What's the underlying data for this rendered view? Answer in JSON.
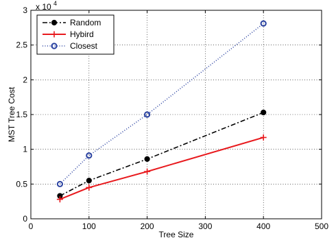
{
  "chart_data": {
    "type": "line",
    "title": "",
    "xlabel": "Tree Size",
    "ylabel": "MST Tree Cost",
    "xlim": [
      0,
      500
    ],
    "ylim": [
      0,
      30000
    ],
    "x_ticks": [
      0,
      100,
      200,
      300,
      400,
      500
    ],
    "y_ticks": [
      0,
      5000,
      10000,
      15000,
      20000,
      25000,
      30000
    ],
    "y_tick_labels": [
      "0",
      "0.5",
      "1",
      "1.5",
      "2",
      "2.5",
      "3"
    ],
    "x_tick_labels": [
      "0",
      "100",
      "200",
      "300",
      "400",
      "500"
    ],
    "y_multiplier_base": "x 10",
    "y_multiplier_exponent": "4",
    "grid": true,
    "legend_position": "top-left",
    "series": [
      {
        "name": "Random",
        "x": [
          50,
          100,
          200,
          400
        ],
        "values": [
          3300,
          5500,
          8600,
          15300
        ],
        "color": "#000000",
        "line_style": "dash-dot",
        "marker": "filled-circle"
      },
      {
        "name": "Hybird",
        "x": [
          50,
          100,
          200,
          400
        ],
        "values": [
          2800,
          4500,
          6800,
          11700
        ],
        "color": "#e8191d",
        "line_style": "solid",
        "marker": "plus"
      },
      {
        "name": "Closest",
        "x": [
          50,
          100,
          200,
          400
        ],
        "values": [
          5000,
          9100,
          15000,
          28100
        ],
        "color": "#2941a0",
        "line_style": "dotted",
        "marker": "open-circle"
      }
    ]
  }
}
